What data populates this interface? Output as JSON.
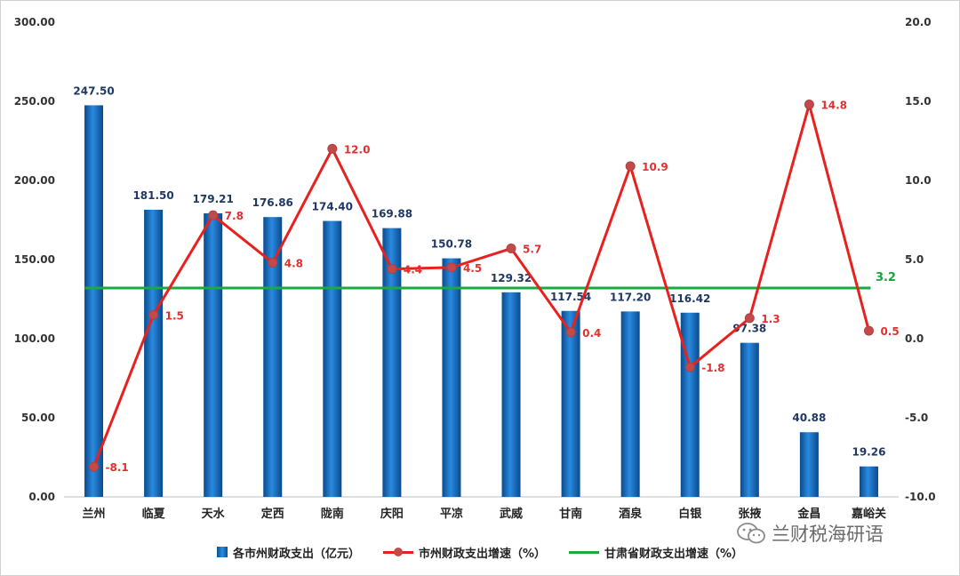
{
  "chart_data": {
    "type": "bar",
    "categories": [
      "兰州",
      "临夏",
      "天水",
      "定西",
      "陇南",
      "庆阳",
      "平凉",
      "武威",
      "甘南",
      "酒泉",
      "白银",
      "张掖",
      "金昌",
      "嘉峪关"
    ],
    "series": [
      {
        "name": "各市州财政支出（亿元）",
        "type": "bar",
        "axis": "left",
        "color": "#0e5fb0",
        "values": [
          247.5,
          181.5,
          179.21,
          176.86,
          174.4,
          169.88,
          150.78,
          129.32,
          117.54,
          117.2,
          116.42,
          97.38,
          40.88,
          19.26
        ],
        "labels": [
          "247.50",
          "181.50",
          "179.21",
          "176.86",
          "174.40",
          "169.88",
          "150.78",
          "129.32",
          "117.54",
          "117.20",
          "116.42",
          "97.38",
          "40.88",
          "19.26"
        ]
      },
      {
        "name": "市州财政支出增速（%）",
        "type": "line",
        "axis": "right",
        "color": "#e8211e",
        "marker_color": "#c24a4a",
        "values": [
          -8.1,
          1.5,
          7.8,
          4.8,
          12.0,
          4.4,
          4.5,
          5.7,
          0.4,
          10.9,
          -1.8,
          1.3,
          14.8,
          0.5
        ],
        "labels": [
          "-8.1",
          "1.5",
          "7.8",
          "4.8",
          "12.0",
          "4.4",
          "4.5",
          "5.7",
          "0.4",
          "10.9",
          "-1.8",
          "1.3",
          "14.8",
          "0.5"
        ]
      },
      {
        "name": "甘肃省财政支出增速（%）",
        "type": "hline",
        "axis": "right",
        "color": "#1aaa3f",
        "value": 3.2,
        "label": "3.2"
      }
    ],
    "y_left": {
      "range": [
        0,
        300
      ],
      "ticks": [
        "0.00",
        "50.00",
        "100.00",
        "150.00",
        "200.00",
        "250.00",
        "300.00"
      ]
    },
    "y_right": {
      "range": [
        -10,
        20
      ],
      "ticks": [
        "-10.0",
        "-5.0",
        "0.0",
        "5.0",
        "10.0",
        "15.0",
        "20.0"
      ]
    },
    "grid": false,
    "legend_position": "bottom"
  },
  "watermark": {
    "text": "兰财税海研语",
    "icon": "wechat-icon"
  }
}
